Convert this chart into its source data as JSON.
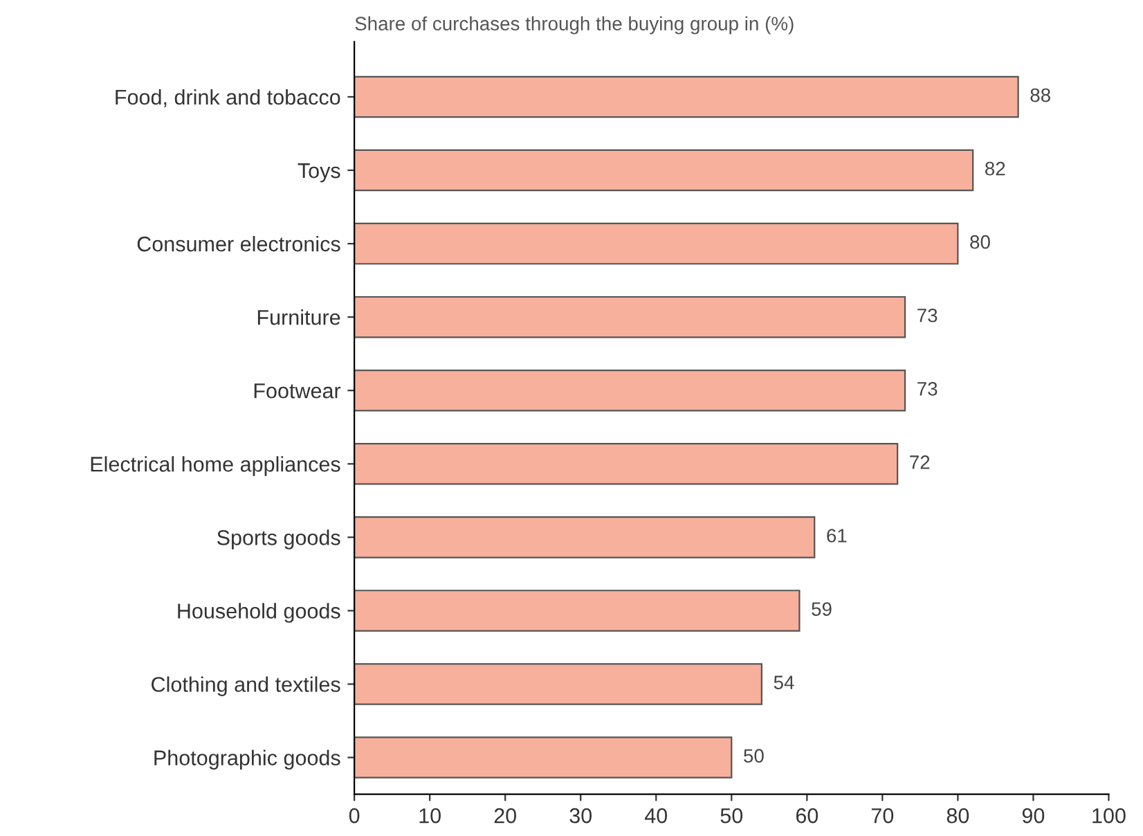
{
  "chart_data": {
    "type": "bar",
    "orientation": "horizontal",
    "title": "Share of curchases through the buying group in (%)",
    "categories": [
      "Food, drink and tobacco",
      "Toys",
      "Consumer electronics",
      "Furniture",
      "Footwear",
      "Electrical home appliances",
      "Sports goods",
      "Household goods",
      "Clothing and textiles",
      "Photographic goods"
    ],
    "values": [
      88,
      82,
      80,
      73,
      73,
      72,
      61,
      59,
      54,
      50
    ],
    "color": "#f7b09c",
    "data_labels": true,
    "xlim": [
      0,
      100
    ],
    "xticks": [
      0,
      10,
      20,
      30,
      40,
      50,
      60,
      70,
      80,
      90,
      100
    ],
    "grid": false,
    "legend": false
  }
}
